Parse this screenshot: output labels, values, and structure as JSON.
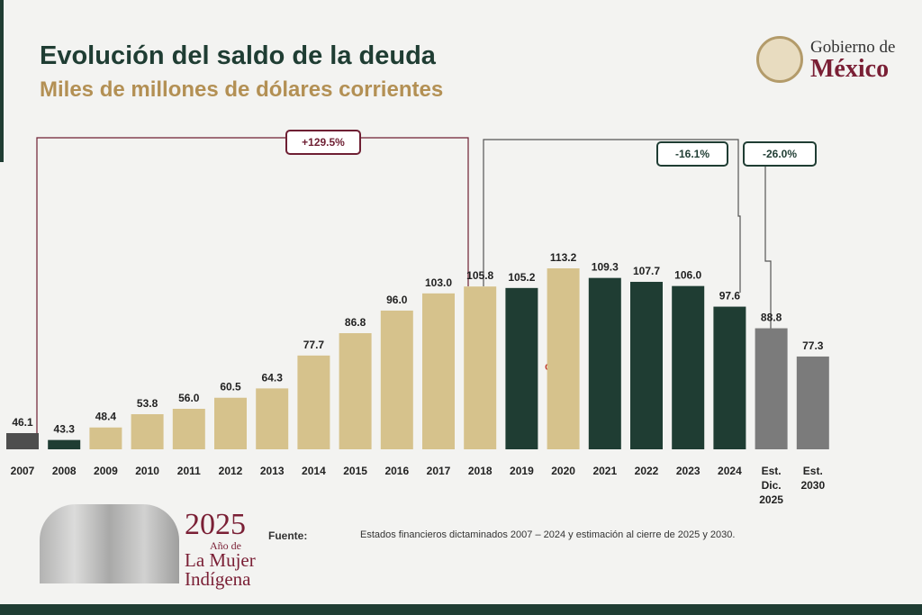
{
  "header": {
    "title": "Evolución del saldo de la deuda",
    "subtitle": "Miles de millones de dólares corrientes",
    "logo_line1": "Gobierno de",
    "logo_line2": "México"
  },
  "chart_data": {
    "type": "bar",
    "title": "Evolución del saldo de la deuda",
    "subtitle": "Miles de millones de dólares corrientes",
    "categories": [
      [
        "2007"
      ],
      [
        "2008"
      ],
      [
        "2009"
      ],
      [
        "2010"
      ],
      [
        "2011"
      ],
      [
        "2012"
      ],
      [
        "2013"
      ],
      [
        "2014"
      ],
      [
        "2015"
      ],
      [
        "2016"
      ],
      [
        "2017"
      ],
      [
        "2018"
      ],
      [
        "2019"
      ],
      [
        "2020"
      ],
      [
        "2021"
      ],
      [
        "2022"
      ],
      [
        "2023"
      ],
      [
        "2024"
      ],
      [
        "Est.",
        "Dic.",
        "2025"
      ],
      [
        "Est.",
        "2030"
      ]
    ],
    "values": [
      46.1,
      43.3,
      48.4,
      53.8,
      56.0,
      60.5,
      64.3,
      77.7,
      86.8,
      96.0,
      103.0,
      105.8,
      105.2,
      113.2,
      109.3,
      107.7,
      106.0,
      97.6,
      88.8,
      77.3
    ],
    "colors": [
      "#4e4e4e",
      "#1f3d33",
      "#d6c28c",
      "#d6c28c",
      "#d6c28c",
      "#d6c28c",
      "#d6c28c",
      "#d6c28c",
      "#d6c28c",
      "#d6c28c",
      "#d6c28c",
      "#d6c28c",
      "#1f3d33",
      "#d6c28c",
      "#1f3d33",
      "#1f3d33",
      "#1f3d33",
      "#1f3d33",
      "#7b7b7b",
      "#7b7b7b"
    ],
    "ylim": [
      39.5,
      120
    ],
    "annotations": [
      {
        "text": "+129.5%",
        "color": "#6e1f33"
      },
      {
        "text": "-16.1%",
        "color": "#1f3d33"
      },
      {
        "text": "-26.0%",
        "color": "#1f3d33"
      },
      {
        "text": "COVID",
        "color": "#c0392b"
      }
    ]
  },
  "footer": {
    "year": "2025",
    "line1": "Año de",
    "line2": "La Mujer",
    "line3": "Indígena",
    "source_label": "Fuente:",
    "source": "Estados financieros dictaminados 2007 – 2024 y estimación al cierre de 2025 y 2030."
  }
}
